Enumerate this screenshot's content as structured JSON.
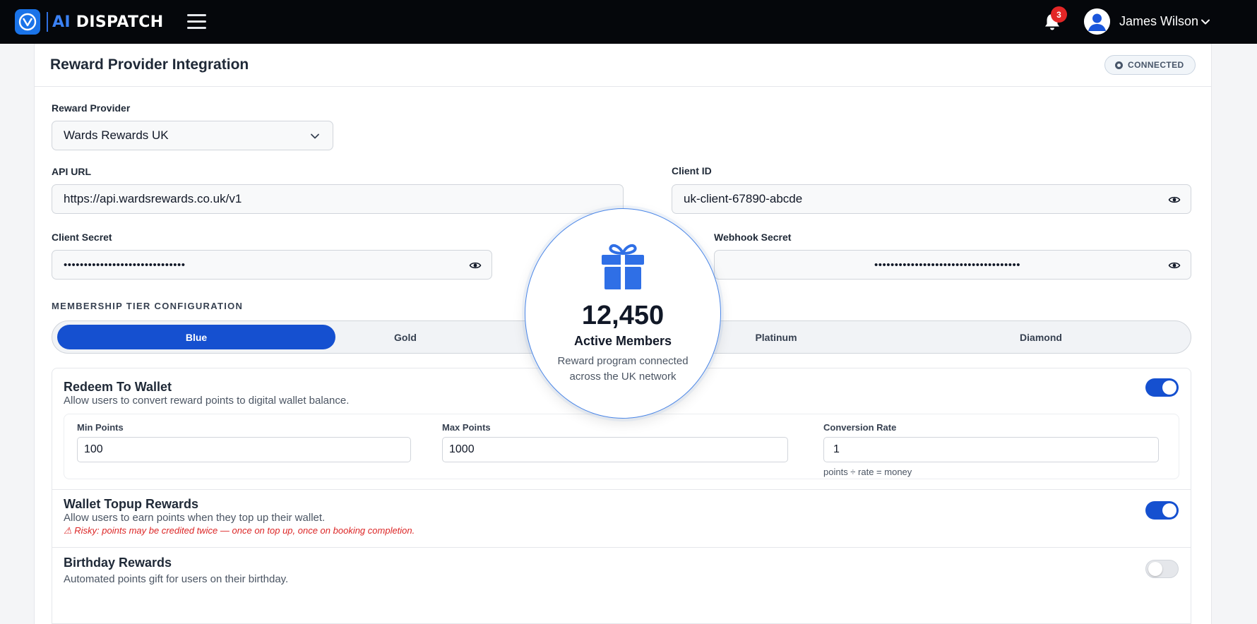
{
  "app": {
    "brand_ai": "AI",
    "brand_name": "DISPATCH",
    "notification_count": "3",
    "user_name": "James Wilson"
  },
  "panel": {
    "title": "Reward Provider Integration",
    "status": "CONNECTED"
  },
  "form": {
    "provider_label": "Reward Provider",
    "provider_value": "Wards Rewards UK",
    "api_url_label": "API URL",
    "api_url_value": "https://api.wardsrewards.co.uk/v1",
    "client_id_label": "Client ID",
    "client_id_value": "uk-client-67890-abcde",
    "client_secret_label": "Client Secret",
    "client_secret_value": "••••••••••••••••••••••••••••••",
    "webhook_secret_label": "Webhook Secret",
    "webhook_secret_value": "••••••••••••••••••••••••••••••••••••"
  },
  "tiers": {
    "section_label": "MEMBERSHIP TIER CONFIGURATION",
    "items": [
      "Blue",
      "Gold",
      "Platinum",
      "Diamond"
    ],
    "active": "Blue"
  },
  "options": {
    "redeem": {
      "title": "Redeem To Wallet",
      "description": "Allow users to convert reward points to digital wallet balance.",
      "enabled": true,
      "min_label": "Min Points",
      "min_value": "100",
      "max_label": "Max Points",
      "max_value": "1000",
      "rate_label": "Conversion Rate",
      "rate_value": "1",
      "rate_help": "points ÷ rate = money"
    },
    "topup": {
      "title": "Wallet Topup Rewards",
      "description": "Allow users to earn points when they top up their wallet.",
      "warning": "⚠ Risky: points may be credited twice — once on top up, once on booking completion.",
      "enabled": true
    },
    "birthday": {
      "title": "Birthday Rewards",
      "description": "Automated points gift for users on their birthday.",
      "enabled": false
    }
  },
  "overlay": {
    "number": "12,450",
    "title": "Active Members",
    "subtitle_line1": "Reward program connected",
    "subtitle_line2": "across the UK network",
    "icon": "gift-icon"
  },
  "colors": {
    "accent": "#1550d0",
    "topbar": "#05070b",
    "danger": "#dc2626"
  }
}
